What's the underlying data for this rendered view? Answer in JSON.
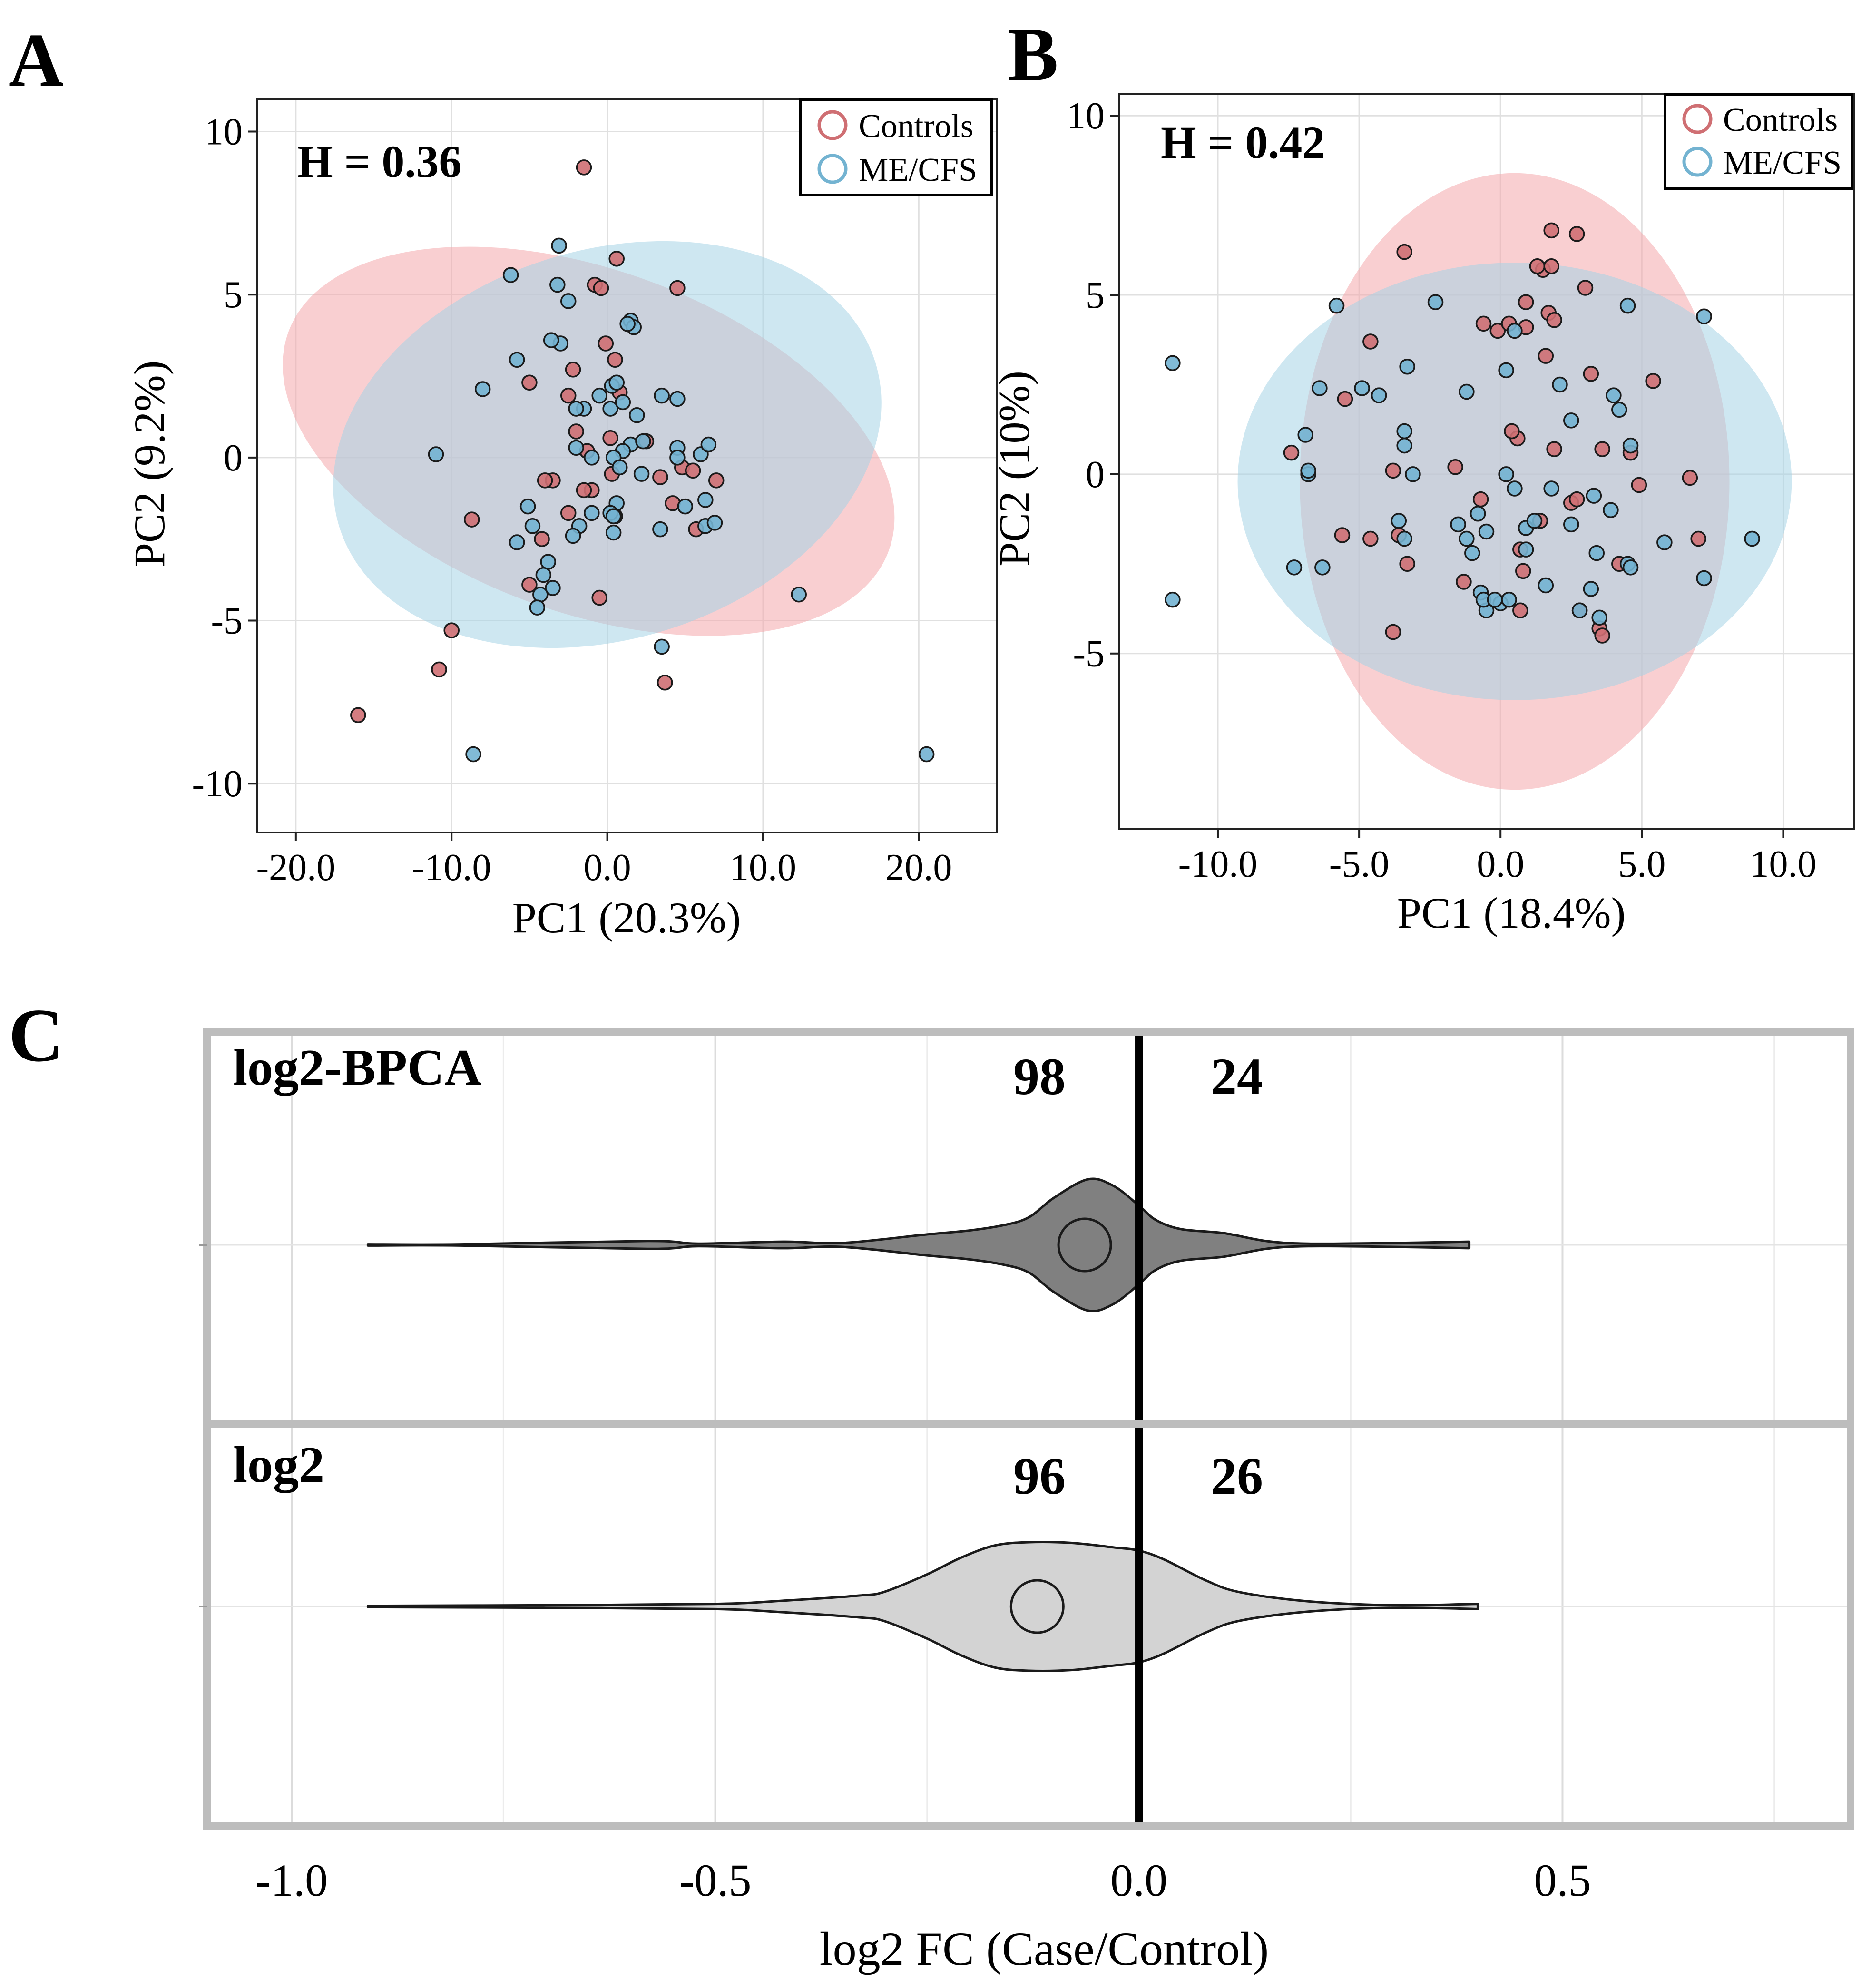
{
  "chart_data": [
    {
      "type": "scatter",
      "panel_label": "A",
      "xlabel": "PC1 (20.3%)",
      "ylabel": "PC2 (9.2%)",
      "annotation": "H = 0.36",
      "xlim": [
        -22.5,
        25
      ],
      "ylim": [
        -11.5,
        11
      ],
      "xticks": [
        -20,
        -10,
        0,
        10,
        20
      ],
      "xtick_labels": [
        "-20.0",
        "-10.0",
        "0.0",
        "10.0",
        "20.0"
      ],
      "yticks": [
        10,
        5,
        0,
        -5,
        -10
      ],
      "ytick_labels": [
        "10",
        "5",
        "0",
        "-5",
        "-10"
      ],
      "legend": {
        "position": "top-right",
        "entries": [
          "Controls",
          "ME/CFS"
        ]
      },
      "colors": {
        "Controls": "#cf6f73",
        "ME/CFS": "#73b3d1",
        "Controls_fill": "#f4a8ab",
        "ME/CFS_fill": "#a6d4e6"
      },
      "ellipses": [
        {
          "group": "Controls",
          "cx": -1.2,
          "cy": 0.5,
          "rx": 11,
          "ry": 9.8,
          "angle_deg": 70
        },
        {
          "group": "ME/CFS",
          "cx": 0,
          "cy": 0.4,
          "rx": 12.5,
          "ry": 8.6,
          "angle_deg": 107
        }
      ],
      "series": [
        {
          "name": "Controls",
          "points": [
            [
              -1.5,
              8.9
            ],
            [
              -16,
              -7.9
            ],
            [
              -10,
              -5.3
            ],
            [
              -10.8,
              -6.5
            ],
            [
              -8.7,
              -1.9
            ],
            [
              -5,
              2.3
            ],
            [
              -2.5,
              1.9
            ],
            [
              -0.8,
              5.3
            ],
            [
              -0.4,
              5.2
            ],
            [
              0.6,
              6.1
            ],
            [
              -0.1,
              3.5
            ],
            [
              0.5,
              3
            ],
            [
              -2,
              0.8
            ],
            [
              -1,
              -1
            ],
            [
              -1.5,
              -1
            ],
            [
              -3.5,
              -0.7
            ],
            [
              -4,
              -0.7
            ],
            [
              -4.2,
              -2.5
            ],
            [
              -5,
              -3.9
            ],
            [
              -2.5,
              -1.7
            ],
            [
              -0.5,
              -4.3
            ],
            [
              -2.2,
              2.7
            ],
            [
              0.2,
              0.6
            ],
            [
              0.3,
              -0.5
            ],
            [
              2.5,
              0.5
            ],
            [
              4.5,
              5.2
            ],
            [
              4.2,
              -1.4
            ],
            [
              3.4,
              -0.6
            ],
            [
              4.8,
              -0.3
            ],
            [
              5.5,
              -0.4
            ],
            [
              5.7,
              -2.2
            ],
            [
              7,
              -0.7
            ],
            [
              3.7,
              -6.9
            ],
            [
              -1.3,
              0.2
            ],
            [
              0.8,
              2
            ]
          ]
        },
        {
          "name": "ME/CFS",
          "points": [
            [
              -3.1,
              6.5
            ],
            [
              -6.2,
              5.6
            ],
            [
              -3.2,
              5.3
            ],
            [
              -2.5,
              4.8
            ],
            [
              -3,
              3.5
            ],
            [
              -3.6,
              3.6
            ],
            [
              -5.8,
              3
            ],
            [
              -8,
              2.1
            ],
            [
              -11,
              0.1
            ],
            [
              -1.5,
              1.5
            ],
            [
              -2,
              1.5
            ],
            [
              0.2,
              1.5
            ],
            [
              1,
              1.7
            ],
            [
              0.3,
              2.2
            ],
            [
              0.6,
              2.3
            ],
            [
              -0.5,
              1.9
            ],
            [
              1.5,
              4.2
            ],
            [
              1.7,
              4
            ],
            [
              1.3,
              4.1
            ],
            [
              1.9,
              1.3
            ],
            [
              3.5,
              1.9
            ],
            [
              4.5,
              1.8
            ],
            [
              1.5,
              0.4
            ],
            [
              2.3,
              0.5
            ],
            [
              1,
              0.2
            ],
            [
              0.4,
              0
            ],
            [
              0.8,
              -0.3
            ],
            [
              2.2,
              -0.5
            ],
            [
              -2,
              0.3
            ],
            [
              -1,
              0
            ],
            [
              0.6,
              -1.4
            ],
            [
              -1.8,
              -2.1
            ],
            [
              -2.2,
              -2.4
            ],
            [
              0.5,
              -1.8
            ],
            [
              0.2,
              -1.7
            ],
            [
              -1,
              -1.7
            ],
            [
              0.4,
              -1.8
            ],
            [
              4.5,
              0.3
            ],
            [
              4.5,
              0
            ],
            [
              5,
              -1.5
            ],
            [
              6,
              0.1
            ],
            [
              6.5,
              0.4
            ],
            [
              6.3,
              -1.3
            ],
            [
              6.3,
              -2.1
            ],
            [
              6.9,
              -2
            ],
            [
              3.4,
              -2.2
            ],
            [
              -3.5,
              -4
            ],
            [
              -3.8,
              -3.2
            ],
            [
              -4.1,
              -3.6
            ],
            [
              -4.3,
              -4.2
            ],
            [
              -4.5,
              -4.6
            ],
            [
              -4.8,
              -2.1
            ],
            [
              -5.1,
              -1.5
            ],
            [
              -5.8,
              -2.6
            ],
            [
              12.3,
              -4.2
            ],
            [
              20.5,
              -9.1
            ],
            [
              -8.6,
              -9.1
            ],
            [
              3.5,
              -5.8
            ],
            [
              0.4,
              -2.3
            ]
          ]
        }
      ]
    },
    {
      "type": "scatter",
      "panel_label": "B",
      "xlabel": "PC1 (18.4%)",
      "ylabel": "PC2 (10%)",
      "annotation": "H = 0.42",
      "xlim": [
        -13.5,
        12.5
      ],
      "ylim": [
        -9.9,
        10.6
      ],
      "xticks": [
        -10,
        -5,
        0,
        5,
        10
      ],
      "xtick_labels": [
        "-10.0",
        "-5.0",
        "0.0",
        "5.0",
        "10.0"
      ],
      "yticks": [
        10,
        5,
        0,
        -5
      ],
      "ytick_labels": [
        "10",
        "5",
        "0",
        "-5"
      ],
      "legend": {
        "position": "top-right",
        "entries": [
          "Controls",
          "ME/CFS"
        ]
      },
      "colors": {
        "Controls": "#cf6f73",
        "ME/CFS": "#73b3d1",
        "Controls_fill": "#f4a8ab",
        "ME/CFS_fill": "#a6d4e6"
      },
      "ellipses": [
        {
          "group": "Controls",
          "cx": 0.5,
          "cy": -0.2,
          "rx": 7.6,
          "ry": 8.6,
          "angle_deg": 0
        },
        {
          "group": "ME/CFS",
          "cx": 0.5,
          "cy": -0.2,
          "rx": 9.8,
          "ry": 6.1,
          "angle_deg": 0
        }
      ],
      "series": [
        {
          "name": "Controls",
          "points": [
            [
              -3.4,
              6.2
            ],
            [
              -4.6,
              3.7
            ],
            [
              -7.4,
              0.6
            ],
            [
              -5.5,
              2.1
            ],
            [
              -5.6,
              -1.7
            ],
            [
              -4.6,
              -1.8
            ],
            [
              -3.8,
              0.1
            ],
            [
              -3.6,
              -1.7
            ],
            [
              -3.3,
              -2.5
            ],
            [
              -3.8,
              -4.4
            ],
            [
              -1.6,
              0.2
            ],
            [
              -1.3,
              -3
            ],
            [
              -0.7,
              -0.7
            ],
            [
              -0.1,
              4
            ],
            [
              0.6,
              1
            ],
            [
              0.7,
              -2.1
            ],
            [
              0.9,
              4.8
            ],
            [
              0.9,
              4.1
            ],
            [
              1.5,
              5.7
            ],
            [
              1.6,
              3.3
            ],
            [
              1.3,
              5.8
            ],
            [
              1.7,
              4.5
            ],
            [
              1.9,
              4.3
            ],
            [
              1.4,
              -1.3
            ],
            [
              0.8,
              -2.7
            ],
            [
              1.9,
              0.7
            ],
            [
              0.7,
              -3.8
            ],
            [
              2.5,
              -0.8
            ],
            [
              2.7,
              -0.7
            ],
            [
              1.8,
              6.8
            ],
            [
              3,
              5.2
            ],
            [
              3.2,
              2.8
            ],
            [
              3.6,
              0.7
            ],
            [
              3.5,
              -4.3
            ],
            [
              3.6,
              -4.5
            ],
            [
              2.8,
              -3.8
            ],
            [
              4.2,
              -2.5
            ],
            [
              4.6,
              0.6
            ],
            [
              4.9,
              -0.3
            ],
            [
              5.4,
              2.6
            ],
            [
              6.7,
              -0.1
            ],
            [
              7,
              -1.8
            ],
            [
              2.7,
              6.7
            ],
            [
              1.8,
              5.8
            ],
            [
              0.3,
              4.2
            ],
            [
              -0.6,
              4.2
            ],
            [
              0.4,
              1.2
            ]
          ]
        },
        {
          "name": "ME/CFS",
          "points": [
            [
              -11.6,
              3.1
            ],
            [
              -11.6,
              -3.5
            ],
            [
              -7.3,
              -2.6
            ],
            [
              -6.9,
              1.1
            ],
            [
              -6.8,
              0
            ],
            [
              -6.8,
              0.1
            ],
            [
              -6.4,
              2.4
            ],
            [
              -6.3,
              -2.6
            ],
            [
              -5.8,
              4.7
            ],
            [
              -4.3,
              2.2
            ],
            [
              -3.6,
              -1.3
            ],
            [
              -3.4,
              1.2
            ],
            [
              -3.4,
              0.8
            ],
            [
              -3.4,
              -1.8
            ],
            [
              -3.3,
              3
            ],
            [
              -3.1,
              0
            ],
            [
              -2.3,
              4.8
            ],
            [
              -1.5,
              -1.4
            ],
            [
              -1.2,
              2.3
            ],
            [
              -1,
              -2.2
            ],
            [
              -0.7,
              -3.3
            ],
            [
              -0.5,
              -1.6
            ],
            [
              -0.5,
              -3.8
            ],
            [
              0,
              -3.6
            ],
            [
              0.2,
              0
            ],
            [
              0.2,
              2.9
            ],
            [
              0.5,
              4
            ],
            [
              0.5,
              -0.4
            ],
            [
              0.9,
              -1.5
            ],
            [
              0.9,
              -2.1
            ],
            [
              1.2,
              -1.3
            ],
            [
              1.6,
              -3.1
            ],
            [
              1.8,
              -0.4
            ],
            [
              2.1,
              2.5
            ],
            [
              2.5,
              1.5
            ],
            [
              2.5,
              -1.4
            ],
            [
              2.8,
              -3.8
            ],
            [
              3.2,
              -3.2
            ],
            [
              3.3,
              -0.6
            ],
            [
              3.4,
              -2.2
            ],
            [
              3.5,
              -4
            ],
            [
              3.9,
              -1
            ],
            [
              4,
              2.2
            ],
            [
              4.2,
              1.8
            ],
            [
              4.5,
              4.7
            ],
            [
              4.5,
              -2.5
            ],
            [
              4.6,
              -2.6
            ],
            [
              4.6,
              0.8
            ],
            [
              5.8,
              -1.9
            ],
            [
              7.2,
              4.4
            ],
            [
              7.2,
              -2.9
            ],
            [
              8.9,
              -1.8
            ],
            [
              -1.2,
              -1.8
            ],
            [
              -0.8,
              -1.1
            ],
            [
              -0.6,
              -3.5
            ],
            [
              -0.2,
              -3.5
            ],
            [
              0.3,
              -3.5
            ],
            [
              -4.9,
              2.4
            ]
          ]
        }
      ]
    },
    {
      "type": "violin",
      "panel_label": "C",
      "xlabel": "log2 FC (Case/Control)",
      "xlim": [
        -1.1,
        0.84
      ],
      "xticks": [
        -1.0,
        -0.5,
        0.0,
        0.5
      ],
      "xtick_labels": [
        "-1.0",
        "-0.5",
        "0.0",
        "0.5"
      ],
      "minor_grid": [
        -0.75,
        -0.25,
        0.25,
        0.75
      ],
      "vline": 0,
      "panels": [
        {
          "label": "log2-BPCA",
          "count_left": "98",
          "count_right": "24",
          "fill": "#808080",
          "center": -0.064,
          "profile": [
            [
              -0.91,
              0.01
            ],
            [
              -0.8,
              0.01
            ],
            [
              -0.58,
              0.06
            ],
            [
              -0.52,
              0.02
            ],
            [
              -0.42,
              0.05
            ],
            [
              -0.35,
              0.03
            ],
            [
              -0.25,
              0.16
            ],
            [
              -0.2,
              0.22
            ],
            [
              -0.16,
              0.3
            ],
            [
              -0.13,
              0.42
            ],
            [
              -0.1,
              0.72
            ],
            [
              -0.06,
              1
            ],
            [
              -0.03,
              0.9
            ],
            [
              0,
              0.6
            ],
            [
              0.02,
              0.38
            ],
            [
              0.05,
              0.24
            ],
            [
              0.1,
              0.18
            ],
            [
              0.15,
              0.06
            ],
            [
              0.2,
              0.02
            ],
            [
              0.3,
              0.03
            ],
            [
              0.39,
              0.05
            ]
          ]
        },
        {
          "label": "log2",
          "count_left": "96",
          "count_right": "26",
          "fill": "#d3d3d3",
          "center": -0.12,
          "profile": [
            [
              -0.91,
              0.01
            ],
            [
              -0.7,
              0.02
            ],
            [
              -0.5,
              0.04
            ],
            [
              -0.42,
              0.09
            ],
            [
              -0.33,
              0.17
            ],
            [
              -0.3,
              0.23
            ],
            [
              -0.25,
              0.5
            ],
            [
              -0.21,
              0.76
            ],
            [
              -0.17,
              0.95
            ],
            [
              -0.13,
              1
            ],
            [
              -0.08,
              0.99
            ],
            [
              -0.03,
              0.92
            ],
            [
              0,
              0.87
            ],
            [
              0.03,
              0.73
            ],
            [
              0.08,
              0.4
            ],
            [
              0.12,
              0.22
            ],
            [
              0.2,
              0.08
            ],
            [
              0.3,
              0.02
            ],
            [
              0.4,
              0.04
            ]
          ]
        }
      ]
    }
  ]
}
